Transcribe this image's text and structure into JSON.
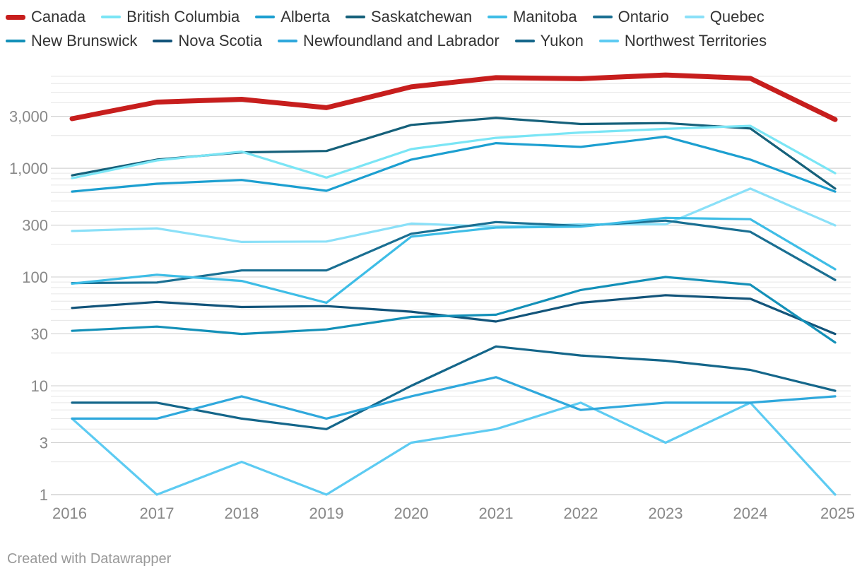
{
  "chart_data": {
    "type": "line",
    "title": "",
    "xlabel": "",
    "ylabel": "",
    "yscale": "log",
    "ylim": [
      1,
      10000
    ],
    "x": [
      "2016",
      "2017",
      "2018",
      "2019",
      "2020",
      "2021",
      "2022",
      "2023",
      "2024",
      "2025"
    ],
    "yticks": [
      {
        "value": 1,
        "label": "1"
      },
      {
        "value": 3,
        "label": "3"
      },
      {
        "value": 10,
        "label": "10"
      },
      {
        "value": 30,
        "label": "30"
      },
      {
        "value": 100,
        "label": "100"
      },
      {
        "value": 300,
        "label": "300"
      },
      {
        "value": 1000,
        "label": "1,000"
      },
      {
        "value": 3000,
        "label": "3,000"
      }
    ],
    "series": [
      {
        "name": "Canada",
        "color": "#c71e1d",
        "values": [
          2850,
          4050,
          4300,
          3600,
          5600,
          6800,
          6650,
          7200,
          6700,
          2800
        ]
      },
      {
        "name": "British Columbia",
        "color": "#7ae5f5",
        "values": [
          810,
          1180,
          1420,
          820,
          1500,
          1900,
          2130,
          2300,
          2450,
          900
        ]
      },
      {
        "name": "Alberta",
        "color": "#1c9fd0",
        "values": [
          610,
          720,
          780,
          620,
          1200,
          1700,
          1570,
          1950,
          1200,
          610
        ]
      },
      {
        "name": "Saskatchewan",
        "color": "#15607a",
        "values": [
          860,
          1200,
          1400,
          1440,
          2500,
          2900,
          2550,
          2600,
          2320,
          650
        ]
      },
      {
        "name": "Manitoba",
        "color": "#3ebde6",
        "values": [
          87,
          105,
          92,
          58,
          235,
          285,
          290,
          350,
          340,
          118
        ]
      },
      {
        "name": "Ontario",
        "color": "#1a6f92",
        "values": [
          88,
          89,
          115,
          115,
          250,
          320,
          295,
          330,
          260,
          94
        ]
      },
      {
        "name": "Quebec",
        "color": "#8ae0f8",
        "values": [
          265,
          280,
          210,
          212,
          310,
          290,
          305,
          305,
          650,
          298
        ]
      },
      {
        "name": "New Brunswick",
        "color": "#1390b8",
        "values": [
          32,
          35,
          30,
          33,
          43,
          45,
          76,
          100,
          85,
          25
        ]
      },
      {
        "name": "Nova Scotia",
        "color": "#12547a",
        "values": [
          52,
          59,
          53,
          54,
          48,
          39,
          58,
          68,
          63,
          30
        ]
      },
      {
        "name": "Newfoundland and Labrador",
        "color": "#2fa8dc",
        "values": [
          5,
          5,
          8,
          5,
          8,
          12,
          6,
          7,
          7,
          8
        ]
      },
      {
        "name": "Yukon",
        "color": "#14668a",
        "values": [
          7,
          7,
          5,
          4,
          10,
          23,
          19,
          17,
          14,
          9
        ]
      },
      {
        "name": "Northwest Territories",
        "color": "#5dcbf2",
        "values": [
          5,
          1,
          2,
          1,
          3,
          4,
          7,
          3,
          7,
          1
        ]
      }
    ]
  },
  "credit": "Created with Datawrapper"
}
